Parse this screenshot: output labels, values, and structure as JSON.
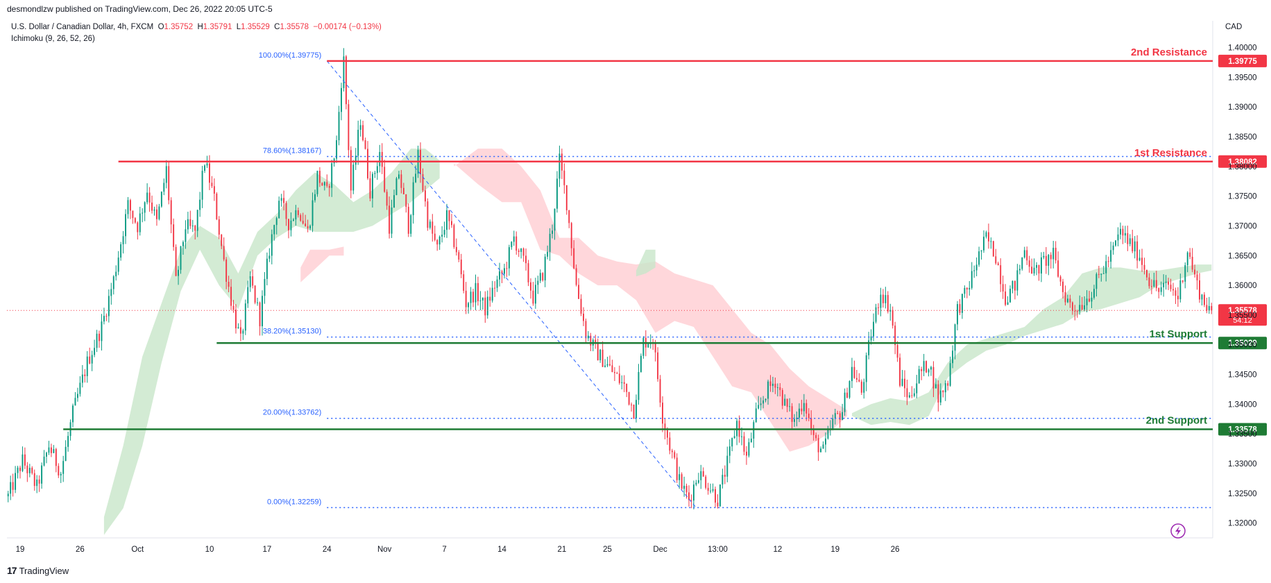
{
  "header": {
    "published_line": "desmondlzw published on TradingView.com, Dec 26, 2022 20:05 UTC-5",
    "symbol_title": "U.S. Dollar / Canadian Dollar, 4h, FXCM",
    "ohlc": {
      "o_label": "O",
      "o": "1.35752",
      "h_label": "H",
      "h": "1.35791",
      "l_label": "L",
      "l": "1.35529",
      "c_label": "C",
      "c": "1.35578",
      "change": "−0.00174 (−0.13%)"
    },
    "indicator": "Ichimoku (9, 26, 52, 26)",
    "currency": "CAD"
  },
  "footer": {
    "brand": "TradingView",
    "logo_text": "17"
  },
  "colors": {
    "up": "#089981",
    "down": "#f23645",
    "resistance": "#f23645",
    "support": "#1e7b34",
    "fib": "#2962ff",
    "cloud_bull": "#c8e6c9",
    "cloud_bear": "#ffcdd2"
  },
  "chart_data": {
    "type": "candlestick",
    "symbol": "USDCAD",
    "timeframe": "4h",
    "ylim": [
      1.3175,
      1.401
    ],
    "y_ticks": [
      "1.40000",
      "1.39500",
      "1.39000",
      "1.38500",
      "1.38000",
      "1.37500",
      "1.37000",
      "1.36500",
      "1.36000",
      "1.35500",
      "1.35000",
      "1.34500",
      "1.34000",
      "1.33500",
      "1.33000",
      "1.32500",
      "1.32000"
    ],
    "x_ticks": [
      "19",
      "26",
      "Oct",
      "10",
      "17",
      "24",
      "Nov",
      "7",
      "14",
      "21",
      "25",
      "Dec",
      "13:00",
      "12",
      "19",
      "26"
    ],
    "price_path": [
      [
        0,
        1.3245
      ],
      [
        6,
        1.3305
      ],
      [
        12,
        1.326
      ],
      [
        17,
        1.333
      ],
      [
        22,
        1.3285
      ],
      [
        27,
        1.3385
      ],
      [
        33,
        1.347
      ],
      [
        39,
        1.353
      ],
      [
        44,
        1.361
      ],
      [
        50,
        1.3735
      ],
      [
        54,
        1.37
      ],
      [
        58,
        1.376
      ],
      [
        62,
        1.3705
      ],
      [
        66,
        1.3795
      ],
      [
        70,
        1.3605
      ],
      [
        74,
        1.37
      ],
      [
        78,
        1.369
      ],
      [
        82,
        1.381
      ],
      [
        86,
        1.3745
      ],
      [
        90,
        1.364
      ],
      [
        94,
        1.3555
      ],
      [
        97,
        1.3505
      ],
      [
        101,
        1.361
      ],
      [
        105,
        1.3545
      ],
      [
        109,
        1.366
      ],
      [
        113,
        1.3745
      ],
      [
        117,
        1.3705
      ],
      [
        121,
        1.373
      ],
      [
        125,
        1.369
      ],
      [
        129,
        1.3785
      ],
      [
        133,
        1.3755
      ],
      [
        137,
        1.384
      ],
      [
        139,
        1.3945
      ],
      [
        140,
        1.3978
      ],
      [
        143,
        1.376
      ],
      [
        147,
        1.388
      ],
      [
        151,
        1.376
      ],
      [
        155,
        1.3825
      ],
      [
        159,
        1.37
      ],
      [
        163,
        1.379
      ],
      [
        167,
        1.37
      ],
      [
        171,
        1.382
      ],
      [
        175,
        1.371
      ],
      [
        179,
        1.366
      ],
      [
        183,
        1.3715
      ],
      [
        187,
        1.366
      ],
      [
        191,
        1.357
      ],
      [
        195,
        1.359
      ],
      [
        199,
        1.356
      ],
      [
        203,
        1.36
      ],
      [
        207,
        1.3625
      ],
      [
        211,
        1.368
      ],
      [
        215,
        1.364
      ],
      [
        219,
        1.358
      ],
      [
        223,
        1.362
      ],
      [
        227,
        1.37
      ],
      [
        230,
        1.381
      ],
      [
        233,
        1.374
      ],
      [
        237,
        1.36
      ],
      [
        241,
        1.352
      ],
      [
        245,
        1.349
      ],
      [
        249,
        1.347
      ],
      [
        253,
        1.345
      ],
      [
        257,
        1.343
      ],
      [
        261,
        1.339
      ],
      [
        265,
        1.3505
      ],
      [
        269,
        1.351
      ],
      [
        273,
        1.338
      ],
      [
        276,
        1.333
      ],
      [
        280,
        1.327
      ],
      [
        284,
        1.324
      ],
      [
        288,
        1.3285
      ],
      [
        292,
        1.3265
      ],
      [
        296,
        1.324
      ],
      [
        300,
        1.33
      ],
      [
        304,
        1.337
      ],
      [
        308,
        1.331
      ],
      [
        312,
        1.338
      ],
      [
        316,
        1.342
      ],
      [
        320,
        1.344
      ],
      [
        324,
        1.34
      ],
      [
        328,
        1.337
      ],
      [
        332,
        1.341
      ],
      [
        336,
        1.334
      ],
      [
        340,
        1.332
      ],
      [
        344,
        1.337
      ],
      [
        348,
        1.339
      ],
      [
        352,
        1.346
      ],
      [
        356,
        1.342
      ],
      [
        360,
        1.352
      ],
      [
        364,
        1.359
      ],
      [
        368,
        1.356
      ],
      [
        372,
        1.344
      ],
      [
        376,
        1.341
      ],
      [
        380,
        1.345
      ],
      [
        384,
        1.347
      ],
      [
        388,
        1.341
      ],
      [
        392,
        1.344
      ],
      [
        396,
        1.356
      ],
      [
        400,
        1.359
      ],
      [
        404,
        1.364
      ],
      [
        408,
        1.368
      ],
      [
        412,
        1.365
      ],
      [
        416,
        1.358
      ],
      [
        420,
        1.36
      ],
      [
        424,
        1.366
      ],
      [
        428,
        1.362
      ],
      [
        432,
        1.364
      ],
      [
        436,
        1.365
      ],
      [
        440,
        1.359
      ],
      [
        444,
        1.356
      ],
      [
        448,
        1.357
      ],
      [
        452,
        1.359
      ],
      [
        456,
        1.362
      ],
      [
        460,
        1.365
      ],
      [
        464,
        1.369
      ],
      [
        468,
        1.367
      ],
      [
        472,
        1.365
      ],
      [
        476,
        1.361
      ],
      [
        480,
        1.359
      ],
      [
        484,
        1.36
      ],
      [
        488,
        1.358
      ],
      [
        492,
        1.366
      ],
      [
        496,
        1.36
      ],
      [
        499,
        1.357
      ],
      [
        502,
        1.356
      ]
    ],
    "ichimoku_cloud": {
      "bull_1": [
        [
          40,
          1.318,
          1.321
        ],
        [
          48,
          1.3225,
          1.333
        ],
        [
          56,
          1.333,
          1.348
        ],
        [
          64,
          1.347,
          1.357
        ],
        [
          72,
          1.359,
          1.366
        ],
        [
          80,
          1.366,
          1.37
        ],
        [
          88,
          1.36,
          1.368
        ],
        [
          96,
          1.356,
          1.362
        ],
        [
          104,
          1.365,
          1.369
        ],
        [
          112,
          1.368,
          1.372
        ],
        [
          120,
          1.37,
          1.376
        ],
        [
          128,
          1.369,
          1.379
        ],
        [
          136,
          1.369,
          1.377
        ],
        [
          144,
          1.369,
          1.374
        ],
        [
          152,
          1.37,
          1.376
        ],
        [
          160,
          1.372,
          1.379
        ],
        [
          168,
          1.374,
          1.383
        ],
        [
          174,
          1.376,
          1.383
        ],
        [
          180,
          1.378,
          1.381
        ]
      ],
      "bear_1": [
        [
          122,
          1.3605,
          1.363
        ],
        [
          126,
          1.362,
          1.366
        ],
        [
          134,
          1.365,
          1.366
        ],
        [
          140,
          1.365,
          1.3665
        ]
      ],
      "bear_2": [
        [
          186,
          1.3805,
          1.38
        ],
        [
          196,
          1.377,
          1.383
        ],
        [
          206,
          1.374,
          1.383
        ],
        [
          214,
          1.374,
          1.38
        ],
        [
          222,
          1.366,
          1.376
        ],
        [
          230,
          1.365,
          1.368
        ],
        [
          238,
          1.362,
          1.368
        ],
        [
          246,
          1.36,
          1.365
        ],
        [
          254,
          1.36,
          1.364
        ],
        [
          262,
          1.3575,
          1.3635
        ],
        [
          270,
          1.352,
          1.364
        ],
        [
          278,
          1.354,
          1.362
        ],
        [
          286,
          1.353,
          1.361
        ],
        [
          294,
          1.348,
          1.36
        ],
        [
          302,
          1.343,
          1.356
        ],
        [
          310,
          1.342,
          1.352
        ],
        [
          318,
          1.337,
          1.35
        ],
        [
          326,
          1.332,
          1.346
        ],
        [
          334,
          1.333,
          1.343
        ],
        [
          342,
          1.335,
          1.341
        ],
        [
          350,
          1.338,
          1.339
        ]
      ],
      "bull_2": [
        [
          262,
          1.3615,
          1.3625
        ],
        [
          266,
          1.362,
          1.366
        ],
        [
          270,
          1.363,
          1.366
        ]
      ],
      "bull_3": [
        [
          352,
          1.338,
          1.3385
        ],
        [
          360,
          1.3365,
          1.34
        ],
        [
          368,
          1.337,
          1.341
        ],
        [
          376,
          1.3365,
          1.3405
        ],
        [
          384,
          1.338,
          1.342
        ],
        [
          392,
          1.3445,
          1.347
        ],
        [
          400,
          1.347,
          1.35
        ],
        [
          408,
          1.349,
          1.351
        ],
        [
          416,
          1.35,
          1.352
        ],
        [
          424,
          1.3515,
          1.353
        ],
        [
          432,
          1.3525,
          1.356
        ],
        [
          440,
          1.3535,
          1.358
        ],
        [
          448,
          1.3555,
          1.362
        ],
        [
          456,
          1.356,
          1.363
        ],
        [
          464,
          1.357,
          1.363
        ],
        [
          472,
          1.358,
          1.3625
        ],
        [
          480,
          1.36,
          1.3625
        ],
        [
          488,
          1.361,
          1.363
        ],
        [
          496,
          1.362,
          1.3635
        ],
        [
          502,
          1.3625,
          1.3635
        ]
      ]
    },
    "levels": [
      {
        "name": "2nd Resistance",
        "price": 1.39775,
        "label": "1.39775",
        "kind": "resistance",
        "x_start": 133
      },
      {
        "name": "1st Resistance",
        "price": 1.38082,
        "label": "1.38082",
        "kind": "resistance",
        "x_start": 46
      },
      {
        "name": "1st Support",
        "price": 1.35029,
        "label": "1.35029",
        "kind": "support",
        "x_start": 87
      },
      {
        "name": "2nd Support",
        "price": 1.33578,
        "label": "1.33578",
        "kind": "support",
        "x_start": 23
      }
    ],
    "fibonacci": [
      {
        "label": "100.00%(1.39775)",
        "price": 1.39775,
        "dotted": false
      },
      {
        "label": "78.60%(1.38167)",
        "price": 1.38167,
        "dotted": true
      },
      {
        "label": "38.20%(1.35130)",
        "price": 1.3513,
        "dotted": true
      },
      {
        "label": "20.00%(1.33762)",
        "price": 1.33762,
        "dotted": true
      },
      {
        "label": "0.00%(1.32259)",
        "price": 1.32259,
        "dotted": true
      }
    ],
    "fib_trend": {
      "from": [
        133,
        1.39775
      ],
      "to": [
        287,
        1.32259
      ]
    },
    "last_price": {
      "price": 1.35578,
      "label": "1.35578",
      "countdown": "54:12"
    }
  }
}
